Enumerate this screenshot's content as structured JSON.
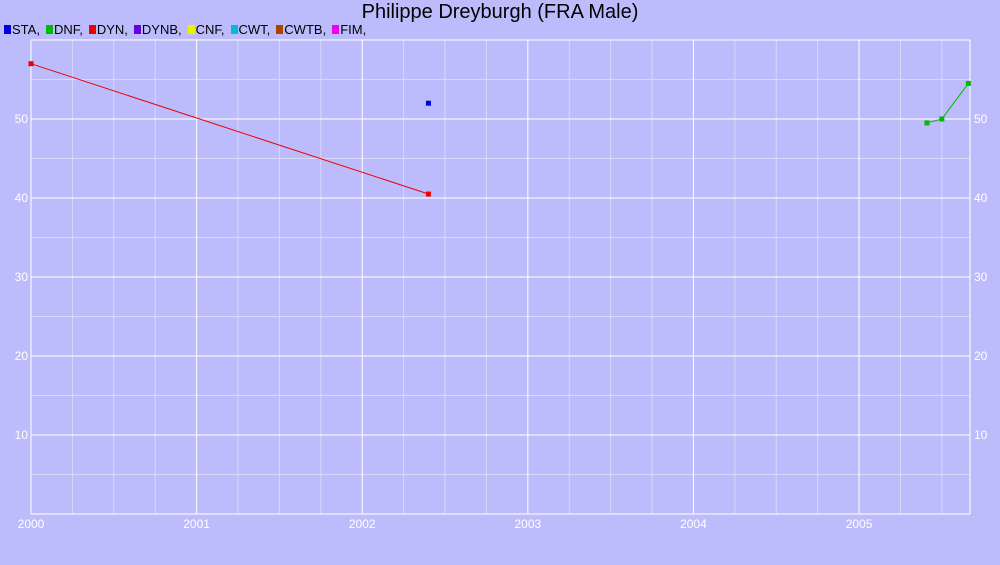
{
  "chart_data": {
    "type": "line",
    "title": "Philippe Dreyburgh (FRA Male)",
    "xlabel": "",
    "ylabel": "",
    "xlim": [
      2000,
      2005.67
    ],
    "ylim": [
      0,
      60
    ],
    "x_ticks": [
      2000,
      2001,
      2002,
      2003,
      2004,
      2005
    ],
    "y_ticks": [
      10,
      20,
      30,
      40,
      50
    ],
    "grid": true,
    "legend_position": "top-left",
    "series": [
      {
        "name": "STA",
        "color": "#0000dd",
        "points": [
          [
            2002.4,
            52
          ]
        ]
      },
      {
        "name": "DNF",
        "color": "#00bb00",
        "points": [
          [
            2005.41,
            49.5
          ],
          [
            2005.5,
            50
          ],
          [
            2005.66,
            54.5
          ]
        ]
      },
      {
        "name": "DYN",
        "color": "#ee0000",
        "points": [
          [
            2000,
            57
          ],
          [
            2002.4,
            40.5
          ]
        ]
      },
      {
        "name": "DYNB",
        "color": "#6600dd",
        "points": []
      },
      {
        "name": "CNF",
        "color": "#eeee00",
        "points": []
      },
      {
        "name": "CWT",
        "color": "#00bbdd",
        "points": []
      },
      {
        "name": "CWTB",
        "color": "#aa4400",
        "points": []
      },
      {
        "name": "FIM",
        "color": "#ee00ee",
        "points": []
      }
    ],
    "legend_entries": [
      "STA,",
      "DNF,",
      "DYN,",
      "DYNB,",
      "CNF,",
      "CWT,",
      "CWTB,",
      "FIM,"
    ]
  }
}
